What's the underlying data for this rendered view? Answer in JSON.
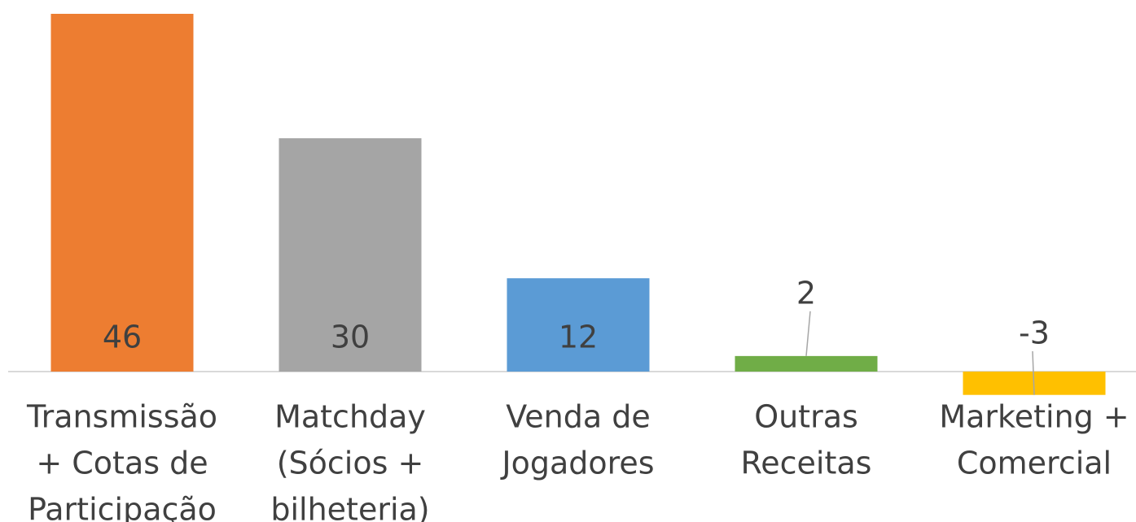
{
  "chart_data": {
    "type": "bar",
    "categories": [
      [
        "Transmissão",
        "+ Cotas de",
        "Participação"
      ],
      [
        "Matchday",
        "(Sócios +",
        "bilheteria)"
      ],
      [
        "Venda de",
        "Jogadores"
      ],
      [
        "Outras",
        "Receitas"
      ],
      [
        "Marketing +",
        "Comercial"
      ]
    ],
    "values": [
      46,
      30,
      12,
      2,
      -3
    ],
    "colors": [
      "#ed7d31",
      "#a5a5a5",
      "#5b9bd5",
      "#70ad47",
      "#ffc000"
    ],
    "ylim": [
      -5,
      46
    ]
  }
}
